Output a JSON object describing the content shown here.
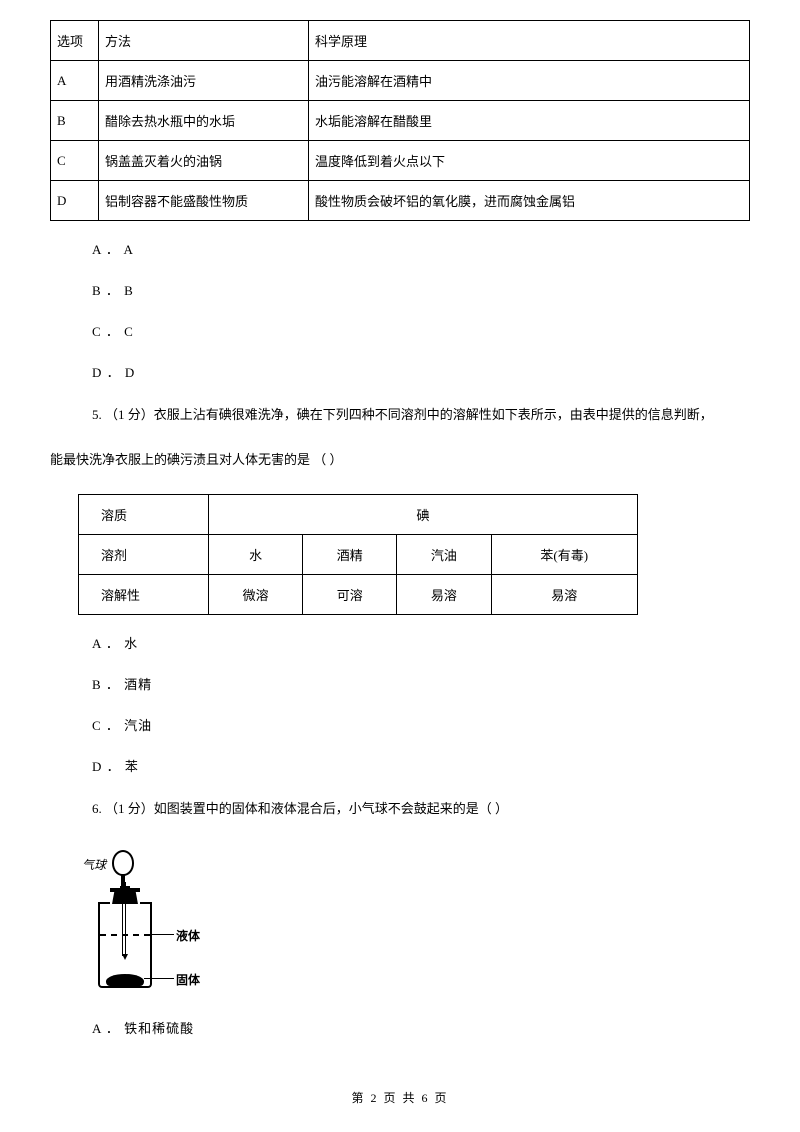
{
  "table1": {
    "headers": [
      "选项",
      "方法",
      "科学原理"
    ],
    "rows": [
      [
        "A",
        "用酒精洗涤油污",
        "油污能溶解在酒精中"
      ],
      [
        "B",
        "醋除去热水瓶中的水垢",
        "水垢能溶解在醋酸里"
      ],
      [
        "C",
        "锅盖盖灭着火的油锅",
        "温度降低到着火点以下"
      ],
      [
        "D",
        "铝制容器不能盛酸性物质",
        "酸性物质会破坏铝的氧化膜，进而腐蚀金属铝"
      ]
    ]
  },
  "q4_options": {
    "a": "A ． A",
    "b": "B ． B",
    "c": "C ． C",
    "d": "D ． D"
  },
  "q5": {
    "stem1": "5.  （1 分）衣服上沾有碘很难洗净，碘在下列四种不同溶剂中的溶解性如下表所示，由表中提供的信息判断，",
    "stem2": "能最快洗净衣服上的碘污渍且对人体无害的是 （     ）"
  },
  "table2": {
    "row1": {
      "label": "溶质",
      "merged": "碘"
    },
    "row2": {
      "label": "溶剂",
      "c1": "水",
      "c2": "酒精",
      "c3": "汽油",
      "c4": "苯(有毒)"
    },
    "row3": {
      "label": "溶解性",
      "c1": "微溶",
      "c2": "可溶",
      "c3": "易溶",
      "c4": "易溶"
    }
  },
  "q5_options": {
    "a": "A ． 水",
    "b": "B ． 酒精",
    "c": "C ． 汽油",
    "d": "D ． 苯"
  },
  "q6": {
    "stem": "6.  （1 分）如图装置中的固体和液体混合后，小气球不会鼓起来的是（     ）"
  },
  "fig": {
    "balloon": "气球",
    "liquid": "液体",
    "solid": "固体"
  },
  "q6_options": {
    "a": "A ． 铁和稀硫酸"
  },
  "footer": "第  2  页  共  6  页"
}
